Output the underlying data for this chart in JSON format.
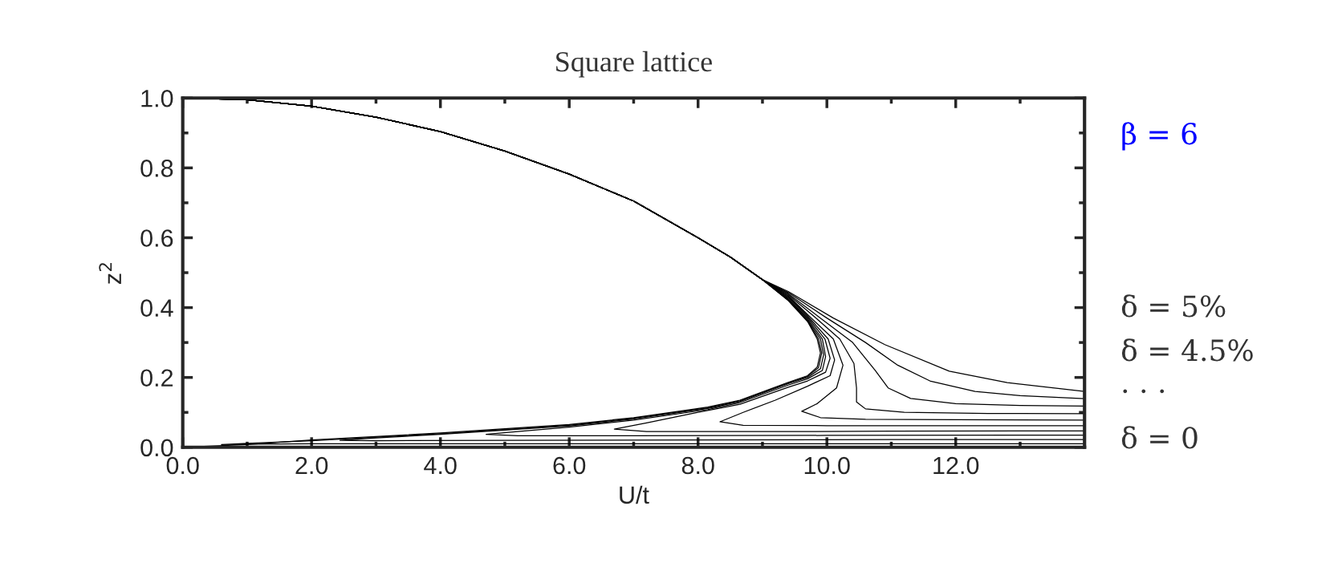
{
  "chart_data": {
    "type": "line",
    "title": "Square lattice",
    "xlabel": "U/t",
    "ylabel": "z$^{2}$",
    "xlim": [
      0,
      14
    ],
    "ylim": [
      0,
      1
    ],
    "xticks": [
      {
        "value": 0,
        "label": "0.0"
      },
      {
        "value": 1,
        "label": null
      },
      {
        "value": 2,
        "label": "2.0"
      },
      {
        "value": 3,
        "label": null
      },
      {
        "value": 4,
        "label": "4.0"
      },
      {
        "value": 5,
        "label": null
      },
      {
        "value": 6,
        "label": "6.0"
      },
      {
        "value": 7,
        "label": null
      },
      {
        "value": 8,
        "label": "8.0"
      },
      {
        "value": 9,
        "label": null
      },
      {
        "value": 10,
        "label": "10.0"
      },
      {
        "value": 11,
        "label": null
      },
      {
        "value": 12,
        "label": "12.0"
      },
      {
        "value": 13,
        "label": null
      }
    ],
    "yticks": [
      {
        "value": 0,
        "label": "0.0"
      },
      {
        "value": 0.1,
        "label": null
      },
      {
        "value": 0.2,
        "label": "0.2"
      },
      {
        "value": 0.3,
        "label": null
      },
      {
        "value": 0.4,
        "label": "0.4"
      },
      {
        "value": 0.5,
        "label": null
      },
      {
        "value": 0.6,
        "label": "0.6"
      },
      {
        "value": 0.7,
        "label": null
      },
      {
        "value": 0.8,
        "label": "0.8"
      },
      {
        "value": 0.9,
        "label": null
      },
      {
        "value": 1,
        "label": "1.0"
      }
    ],
    "grid": false,
    "legend": false,
    "marker": "none",
    "line_style": "solid",
    "annotations": [
      "β = 6",
      "δ = 5%",
      "δ = 4.5%",
      "· · ·",
      "δ = 0"
    ],
    "series": [
      {
        "color": "#000000",
        "x": [
          0,
          1,
          2,
          3,
          4,
          5,
          6,
          7,
          8,
          8.5,
          9,
          9.4,
          9.7,
          9.85,
          9.9,
          9.85,
          9.7,
          9.4,
          8.65,
          8.15,
          7,
          6,
          4,
          2,
          1,
          0
        ],
        "values": [
          1,
          0.995,
          0.977,
          0.945,
          0.904,
          0.848,
          0.782,
          0.705,
          0.6,
          0.545,
          0.48,
          0.42,
          0.36,
          0.31,
          0.27,
          0.23,
          0.205,
          0.186,
          0.135,
          0.115,
          0.085,
          0.065,
          0.041,
          0.021,
          0.008,
          0
        ]
      },
      {
        "color": "#000000",
        "x": [
          0,
          1,
          2,
          3,
          4,
          5,
          6,
          7,
          8,
          8.5,
          9,
          9.4,
          9.7,
          9.87,
          9.92,
          9.87,
          9.7,
          9.4,
          8.65,
          8.15,
          7,
          6,
          4,
          2,
          1,
          0.6,
          1,
          2,
          6,
          10,
          14
        ],
        "values": [
          1,
          0.995,
          0.977,
          0.945,
          0.904,
          0.848,
          0.782,
          0.705,
          0.6,
          0.545,
          0.48,
          0.421,
          0.362,
          0.31,
          0.27,
          0.228,
          0.203,
          0.184,
          0.133,
          0.113,
          0.083,
          0.063,
          0.039,
          0.019,
          0.011,
          0.008,
          0.009,
          0.01,
          0.01,
          0.01,
          0.01
        ]
      },
      {
        "color": "#000000",
        "x": [
          0,
          1,
          2,
          3,
          4,
          5,
          6,
          7,
          8,
          8.5,
          9,
          9.4,
          9.7,
          9.9,
          9.95,
          9.9,
          9.7,
          9.4,
          8.65,
          8.15,
          7,
          6,
          4,
          3,
          2.44,
          3,
          5,
          8,
          11,
          14
        ],
        "values": [
          1,
          0.995,
          0.977,
          0.945,
          0.904,
          0.848,
          0.782,
          0.705,
          0.6,
          0.545,
          0.48,
          0.423,
          0.365,
          0.31,
          0.265,
          0.225,
          0.2,
          0.182,
          0.131,
          0.111,
          0.081,
          0.061,
          0.037,
          0.027,
          0.02,
          0.019,
          0.02,
          0.021,
          0.022,
          0.022
        ]
      },
      {
        "color": "#000000",
        "x": [
          0,
          1,
          2,
          3,
          4,
          5,
          6,
          7,
          8,
          8.5,
          9,
          9.4,
          9.7,
          9.93,
          9.98,
          9.93,
          9.7,
          9.4,
          8.65,
          8.15,
          7,
          6,
          5.2,
          4.71,
          5.2,
          7,
          10,
          14
        ],
        "values": [
          1,
          0.995,
          0.977,
          0.945,
          0.904,
          0.848,
          0.782,
          0.705,
          0.6,
          0.545,
          0.48,
          0.425,
          0.368,
          0.31,
          0.26,
          0.22,
          0.196,
          0.178,
          0.128,
          0.108,
          0.078,
          0.058,
          0.045,
          0.037,
          0.033,
          0.033,
          0.034,
          0.035
        ]
      },
      {
        "color": "#000000",
        "x": [
          0,
          1,
          2,
          3,
          4,
          5,
          6,
          7,
          8,
          8.5,
          9,
          9.4,
          9.7,
          9.97,
          10.05,
          9.98,
          9.7,
          9.4,
          8.65,
          8,
          7.2,
          6.7,
          7.2,
          9,
          11,
          14
        ],
        "values": [
          1,
          0.995,
          0.977,
          0.945,
          0.904,
          0.848,
          0.782,
          0.705,
          0.6,
          0.545,
          0.48,
          0.428,
          0.372,
          0.31,
          0.255,
          0.215,
          0.19,
          0.172,
          0.123,
          0.1,
          0.07,
          0.052,
          0.045,
          0.045,
          0.046,
          0.047
        ]
      },
      {
        "color": "#000000",
        "x": [
          0,
          1,
          2,
          3,
          4,
          5,
          6,
          7,
          8,
          8.5,
          9,
          9.4,
          9.7,
          10.02,
          10.12,
          10.05,
          9.7,
          9.2,
          8.7,
          8.34,
          8.7,
          10,
          12,
          14
        ],
        "values": [
          1,
          0.995,
          0.977,
          0.945,
          0.904,
          0.848,
          0.782,
          0.705,
          0.6,
          0.545,
          0.48,
          0.431,
          0.376,
          0.31,
          0.25,
          0.205,
          0.175,
          0.135,
          0.1,
          0.073,
          0.063,
          0.062,
          0.062,
          0.062
        ]
      },
      {
        "color": "#000000",
        "x": [
          0,
          1,
          2,
          3,
          4,
          5,
          6,
          7,
          8,
          8.5,
          9,
          9.4,
          9.7,
          10.1,
          10.25,
          10.15,
          9.85,
          9.61,
          9.9,
          10.6,
          12,
          14
        ],
        "values": [
          1,
          0.995,
          0.977,
          0.945,
          0.904,
          0.848,
          0.782,
          0.705,
          0.6,
          0.545,
          0.48,
          0.434,
          0.38,
          0.31,
          0.235,
          0.17,
          0.125,
          0.103,
          0.085,
          0.08,
          0.079,
          0.078
        ]
      },
      {
        "color": "#000000",
        "x": [
          0,
          1,
          2,
          3,
          4,
          5,
          6,
          7,
          8,
          8.5,
          9,
          9.4,
          9.8,
          10.2,
          10.42,
          10.46,
          10.46,
          10.6,
          11.2,
          12.5,
          14
        ],
        "values": [
          1,
          0.995,
          0.977,
          0.945,
          0.904,
          0.848,
          0.782,
          0.705,
          0.6,
          0.545,
          0.48,
          0.437,
          0.375,
          0.31,
          0.24,
          0.17,
          0.13,
          0.11,
          0.1,
          0.097,
          0.096
        ]
      },
      {
        "color": "#000000",
        "x": [
          0,
          1,
          2,
          3,
          4,
          5,
          6,
          7,
          8,
          8.5,
          9,
          9.4,
          9.9,
          10.4,
          10.75,
          10.95,
          11.3,
          12,
          13,
          14
        ],
        "values": [
          1,
          0.995,
          0.977,
          0.945,
          0.904,
          0.848,
          0.782,
          0.705,
          0.6,
          0.545,
          0.48,
          0.44,
          0.37,
          0.3,
          0.22,
          0.17,
          0.14,
          0.125,
          0.12,
          0.118
        ]
      },
      {
        "color": "#000000",
        "x": [
          0,
          1,
          2,
          3,
          4,
          5,
          6,
          7,
          8,
          8.5,
          9,
          9.4,
          10,
          10.6,
          11.1,
          11.6,
          12.3,
          13,
          14
        ],
        "values": [
          1,
          0.995,
          0.977,
          0.945,
          0.904,
          0.848,
          0.782,
          0.705,
          0.6,
          0.545,
          0.48,
          0.443,
          0.37,
          0.3,
          0.235,
          0.19,
          0.16,
          0.148,
          0.139
        ]
      },
      {
        "color": "#000000",
        "x": [
          0,
          1,
          2,
          3,
          4,
          5,
          6,
          7,
          8,
          8.5,
          9,
          9.4,
          10.1,
          10.9,
          11.9,
          12.8,
          14
        ],
        "values": [
          1,
          0.995,
          0.977,
          0.945,
          0.904,
          0.848,
          0.782,
          0.705,
          0.6,
          0.545,
          0.48,
          0.446,
          0.37,
          0.294,
          0.218,
          0.185,
          0.16
        ]
      }
    ]
  }
}
